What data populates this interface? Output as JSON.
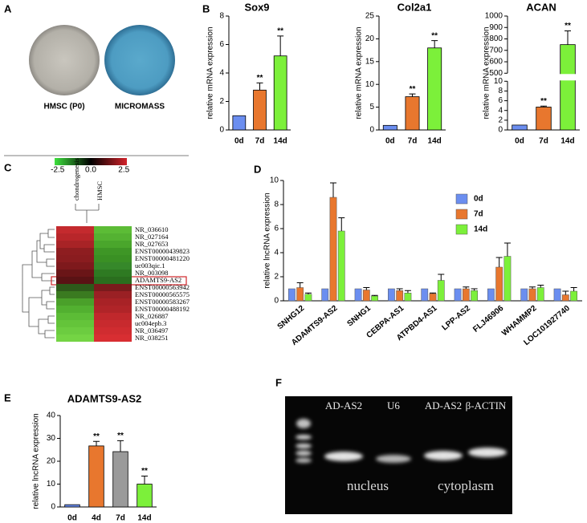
{
  "panels": {
    "labels": [
      "A",
      "B",
      "C",
      "D",
      "E",
      "F"
    ],
    "A": {
      "captions": [
        "HMSC (P0)",
        "MICROMASS"
      ]
    },
    "C": {
      "scale_ticks": [
        -2.5,
        {
          "value": 0,
          "label": "0.0"
        },
        2.5
      ],
      "columns": [
        "chondrogenesis",
        "HMSC"
      ],
      "rows": [
        {
          "label": "NR_036610",
          "colors": [
            "#c42a2e",
            "#5cbc36"
          ]
        },
        {
          "label": "NR_027164",
          "colors": [
            "#b8262a",
            "#54b232"
          ]
        },
        {
          "label": "NR_027653",
          "colors": [
            "#a82326",
            "#4aa62c"
          ]
        },
        {
          "label": "ENST00000439823",
          "colors": [
            "#8e1d20",
            "#3e9626"
          ]
        },
        {
          "label": "ENST00000481220",
          "colors": [
            "#8a1c1f",
            "#3a9024"
          ]
        },
        {
          "label": "uc003qic.1",
          "colors": [
            "#7e191c",
            "#36882a"
          ]
        },
        {
          "label": "NR_003098",
          "colors": [
            "#6a1517",
            "#2e7a22"
          ]
        },
        {
          "label": "ADAMTS9-AS2",
          "colors": [
            "#5a1214",
            "#2a6e1e"
          ]
        },
        {
          "label": "ENST00000563942",
          "colors": [
            "#2d5a1a",
            "#7a1a1c"
          ]
        },
        {
          "label": "ENST00000565575",
          "colors": [
            "#3a7a20",
            "#9a2024"
          ]
        },
        {
          "label": "ENST00000583267",
          "colors": [
            "#4aa02a",
            "#a82226"
          ]
        },
        {
          "label": "ENST00000488192",
          "colors": [
            "#52b030",
            "#b02428"
          ]
        },
        {
          "label": "NR_026887",
          "colors": [
            "#5cbc36",
            "#c0282c"
          ]
        },
        {
          "label": "uc004epb.3",
          "colors": [
            "#64c43a",
            "#c82a2e"
          ]
        },
        {
          "label": "NR_036497",
          "colors": [
            "#6ccc40",
            "#d02c30"
          ]
        },
        {
          "label": "NR_038251",
          "colors": [
            "#74d444",
            "#d82e32"
          ]
        }
      ]
    },
    "F": {
      "lane_labels": [
        "AD-AS2",
        "U6",
        "AD-AS2",
        "β-ACTIN"
      ],
      "fractions": [
        "nucleus",
        "cytoplasm"
      ]
    }
  },
  "chart_data": [
    {
      "type": "bar",
      "title": "Sox9",
      "ylabel": "relative mRNA expression",
      "categories": [
        "0d",
        "7d",
        "14d"
      ],
      "values": [
        1,
        2.8,
        5.2
      ],
      "errors": [
        0,
        0.5,
        1.4
      ],
      "annotations": [
        null,
        "**",
        "**"
      ],
      "colors": [
        "#6b8ef0",
        "#e8772e",
        "#7cf03a"
      ],
      "ylim": [
        0,
        8
      ],
      "yticks": [
        0,
        2,
        4,
        6,
        8
      ]
    },
    {
      "type": "bar",
      "title": "Col2a1",
      "ylabel": "relative mRNA expression",
      "categories": [
        "0d",
        "7d",
        "14d"
      ],
      "values": [
        1,
        7.3,
        18
      ],
      "errors": [
        0,
        0.6,
        1.6
      ],
      "annotations": [
        null,
        "**",
        "**"
      ],
      "colors": [
        "#6b8ef0",
        "#e8772e",
        "#7cf03a"
      ],
      "ylim": [
        0,
        25
      ],
      "yticks": [
        0,
        5,
        10,
        15,
        20,
        25
      ]
    },
    {
      "type": "bar",
      "title": "ACAN",
      "ylabel": "relative mRNA expression",
      "categories": [
        "0d",
        "7d",
        "14d"
      ],
      "values": [
        1,
        4.7,
        750
      ],
      "errors": [
        0,
        0.2,
        120
      ],
      "annotations": [
        null,
        "**",
        "**"
      ],
      "colors": [
        "#6b8ef0",
        "#e8772e",
        "#7cf03a"
      ],
      "ylim": [
        0,
        1000
      ],
      "ybreak": [
        10,
        500
      ],
      "yticks": [
        0,
        2,
        4,
        6,
        8,
        10,
        500,
        600,
        700,
        800,
        900,
        1000
      ]
    },
    {
      "type": "grouped_bar",
      "ylabel": "relative lncRNA expression",
      "categories": [
        "SNHG12",
        "ADAMTS9-AS2",
        "SNHG1",
        "CEBPA-AS1",
        "ATPBD4-AS1",
        "LPP-AS2",
        "FLJ46906",
        "WHAMMP2",
        "LOC101927740"
      ],
      "series": [
        {
          "name": "0d",
          "color": "#6b8ef0",
          "values": [
            1,
            1,
            1,
            1,
            1,
            1,
            1,
            1,
            1
          ],
          "errors": [
            0,
            0,
            0,
            0,
            0,
            0,
            0,
            0,
            0
          ]
        },
        {
          "name": "7d",
          "color": "#e8772e",
          "values": [
            1.1,
            8.6,
            0.9,
            0.85,
            0.6,
            1.0,
            2.8,
            1.0,
            0.5
          ],
          "errors": [
            0.4,
            1.2,
            0.2,
            0.15,
            0.05,
            0.15,
            0.8,
            0.15,
            0.3
          ]
        },
        {
          "name": "14d",
          "color": "#7cf03a",
          "values": [
            0.55,
            5.8,
            0.4,
            0.65,
            1.7,
            0.85,
            3.7,
            1.1,
            0.8
          ],
          "errors": [
            0.1,
            1.1,
            0.05,
            0.2,
            0.5,
            0.15,
            1.1,
            0.2,
            0.3
          ]
        }
      ],
      "ylim": [
        0,
        10
      ],
      "yticks": [
        0,
        2,
        4,
        6,
        8,
        10
      ],
      "legend": "upper right"
    },
    {
      "type": "bar",
      "title": "ADAMTS9-AS2",
      "ylabel": "relative lncRNA expression",
      "categories": [
        "0d",
        "4d",
        "7d",
        "14d"
      ],
      "values": [
        1,
        26.7,
        24.2,
        10
      ],
      "errors": [
        0,
        2,
        4.8,
        3.5
      ],
      "annotations": [
        null,
        "**",
        "**",
        "**"
      ],
      "colors": [
        "#6b8ef0",
        "#e8772e",
        "#9a9a9a",
        "#7cf03a"
      ],
      "ylim": [
        0,
        40
      ],
      "yticks": [
        0,
        10,
        20,
        30,
        40
      ]
    }
  ]
}
